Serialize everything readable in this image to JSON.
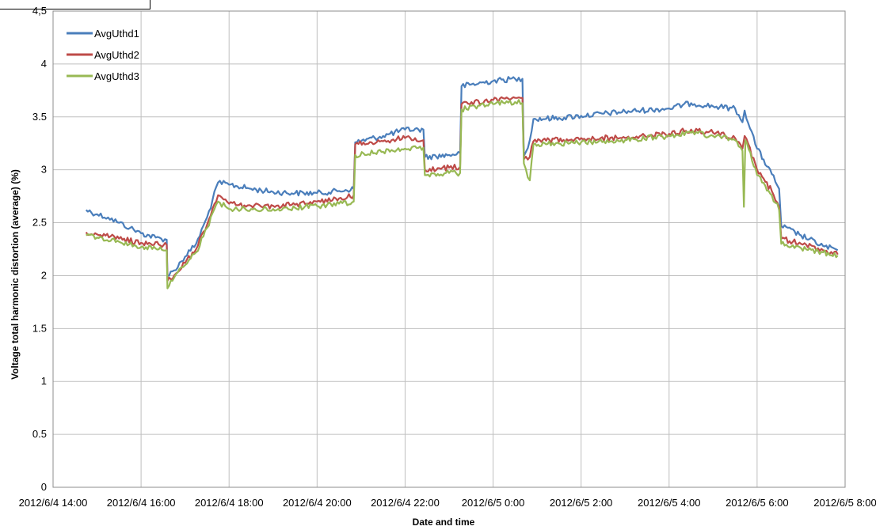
{
  "chart_data": {
    "type": "line",
    "xlabel": "Date and time",
    "ylabel": "Voltage total harmonic distortion (average) (%)",
    "ylim": [
      0,
      4.5
    ],
    "y_ticks": [
      "0",
      "0.5",
      "1",
      "1.5",
      "2",
      "2.5",
      "3",
      "3.5",
      "4",
      "4,5"
    ],
    "x_range": [
      "2012-06-04T14:00",
      "2012-06-05T08:00"
    ],
    "x_ticks": [
      "2012/6/4 14:00",
      "2012/6/4 16:00",
      "2012/6/4 18:00",
      "2012/6/4 20:00",
      "2012/6/4 22:00",
      "2012/6/5 0:00",
      "2012/6/5 2:00",
      "2012/6/5 4:00",
      "2012/6/5 6:00",
      "2012/6/5 8:00"
    ],
    "grid": true,
    "legend_position": "top-left",
    "series": [
      {
        "name": "AvgUthd1",
        "color": "#4a7ebb",
        "points": [
          [
            "2012-06-04T14:45",
            2.62
          ],
          [
            "2012-06-04T15:00",
            2.58
          ],
          [
            "2012-06-04T15:15",
            2.55
          ],
          [
            "2012-06-04T15:30",
            2.5
          ],
          [
            "2012-06-04T15:45",
            2.45
          ],
          [
            "2012-06-04T16:00",
            2.4
          ],
          [
            "2012-06-04T16:20",
            2.36
          ],
          [
            "2012-06-04T16:35",
            2.34
          ],
          [
            "2012-06-04T16:36",
            2.0
          ],
          [
            "2012-06-04T16:45",
            2.05
          ],
          [
            "2012-06-04T17:00",
            2.18
          ],
          [
            "2012-06-04T17:15",
            2.3
          ],
          [
            "2012-06-04T17:30",
            2.55
          ],
          [
            "2012-06-04T17:45",
            2.88
          ],
          [
            "2012-06-04T18:00",
            2.86
          ],
          [
            "2012-06-04T18:30",
            2.82
          ],
          [
            "2012-06-04T19:00",
            2.79
          ],
          [
            "2012-06-04T19:30",
            2.78
          ],
          [
            "2012-06-04T20:00",
            2.78
          ],
          [
            "2012-06-04T20:30",
            2.8
          ],
          [
            "2012-06-04T20:50",
            2.82
          ],
          [
            "2012-06-04T20:52",
            3.26
          ],
          [
            "2012-06-04T21:30",
            3.32
          ],
          [
            "2012-06-04T22:00",
            3.38
          ],
          [
            "2012-06-04T22:25",
            3.38
          ],
          [
            "2012-06-04T22:27",
            3.12
          ],
          [
            "2012-06-04T23:00",
            3.14
          ],
          [
            "2012-06-04T23:15",
            3.16
          ],
          [
            "2012-06-04T23:17",
            3.79
          ],
          [
            "2012-06-05T00:00",
            3.84
          ],
          [
            "2012-06-05T00:30",
            3.86
          ],
          [
            "2012-06-05T00:40",
            3.86
          ],
          [
            "2012-06-05T00:42",
            3.13
          ],
          [
            "2012-06-05T00:50",
            3.28
          ],
          [
            "2012-06-05T00:55",
            3.48
          ],
          [
            "2012-06-05T01:30",
            3.49
          ],
          [
            "2012-06-05T02:00",
            3.51
          ],
          [
            "2012-06-05T03:00",
            3.55
          ],
          [
            "2012-06-05T04:00",
            3.58
          ],
          [
            "2012-06-05T04:30",
            3.63
          ],
          [
            "2012-06-05T05:00",
            3.6
          ],
          [
            "2012-06-05T05:30",
            3.58
          ],
          [
            "2012-06-05T05:40",
            3.45
          ],
          [
            "2012-06-05T05:43",
            3.56
          ],
          [
            "2012-06-05T06:00",
            3.2
          ],
          [
            "2012-06-05T06:20",
            2.96
          ],
          [
            "2012-06-05T06:30",
            2.82
          ],
          [
            "2012-06-05T06:33",
            2.47
          ],
          [
            "2012-06-05T07:00",
            2.38
          ],
          [
            "2012-06-05T07:30",
            2.28
          ],
          [
            "2012-06-05T07:50",
            2.24
          ]
        ]
      },
      {
        "name": "AvgUthd2",
        "color": "#be4b48",
        "points": [
          [
            "2012-06-04T14:45",
            2.41
          ],
          [
            "2012-06-04T15:00",
            2.39
          ],
          [
            "2012-06-04T15:30",
            2.35
          ],
          [
            "2012-06-04T16:00",
            2.31
          ],
          [
            "2012-06-04T16:35",
            2.29
          ],
          [
            "2012-06-04T16:36",
            1.95
          ],
          [
            "2012-06-04T16:45",
            2.0
          ],
          [
            "2012-06-04T17:00",
            2.12
          ],
          [
            "2012-06-04T17:15",
            2.25
          ],
          [
            "2012-06-04T17:30",
            2.48
          ],
          [
            "2012-06-04T17:45",
            2.76
          ],
          [
            "2012-06-04T18:00",
            2.68
          ],
          [
            "2012-06-04T18:30",
            2.66
          ],
          [
            "2012-06-04T19:00",
            2.66
          ],
          [
            "2012-06-04T19:30",
            2.67
          ],
          [
            "2012-06-04T20:00",
            2.7
          ],
          [
            "2012-06-04T20:30",
            2.73
          ],
          [
            "2012-06-04T20:50",
            2.76
          ],
          [
            "2012-06-04T20:52",
            3.24
          ],
          [
            "2012-06-04T21:30",
            3.27
          ],
          [
            "2012-06-04T22:00",
            3.3
          ],
          [
            "2012-06-04T22:25",
            3.28
          ],
          [
            "2012-06-04T22:27",
            3.0
          ],
          [
            "2012-06-04T23:00",
            3.02
          ],
          [
            "2012-06-04T23:15",
            3.03
          ],
          [
            "2012-06-04T23:17",
            3.62
          ],
          [
            "2012-06-05T00:00",
            3.66
          ],
          [
            "2012-06-05T00:30",
            3.68
          ],
          [
            "2012-06-05T00:40",
            3.68
          ],
          [
            "2012-06-05T00:42",
            3.1
          ],
          [
            "2012-06-05T00:50",
            3.12
          ],
          [
            "2012-06-05T00:55",
            3.27
          ],
          [
            "2012-06-05T02:00",
            3.3
          ],
          [
            "2012-06-05T03:00",
            3.3
          ],
          [
            "2012-06-05T04:00",
            3.34
          ],
          [
            "2012-06-05T04:30",
            3.38
          ],
          [
            "2012-06-05T05:00",
            3.35
          ],
          [
            "2012-06-05T05:30",
            3.3
          ],
          [
            "2012-06-05T05:40",
            3.2
          ],
          [
            "2012-06-05T05:43",
            3.32
          ],
          [
            "2012-06-05T06:00",
            3.0
          ],
          [
            "2012-06-05T06:20",
            2.8
          ],
          [
            "2012-06-05T06:30",
            2.65
          ],
          [
            "2012-06-05T06:33",
            2.35
          ],
          [
            "2012-06-05T07:00",
            2.3
          ],
          [
            "2012-06-05T07:30",
            2.24
          ],
          [
            "2012-06-05T07:50",
            2.2
          ]
        ]
      },
      {
        "name": "AvgUthd3",
        "color": "#98b954",
        "points": [
          [
            "2012-06-04T14:45",
            2.38
          ],
          [
            "2012-06-04T15:00",
            2.36
          ],
          [
            "2012-06-04T15:30",
            2.32
          ],
          [
            "2012-06-04T16:00",
            2.27
          ],
          [
            "2012-06-04T16:35",
            2.24
          ],
          [
            "2012-06-04T16:36",
            1.88
          ],
          [
            "2012-06-04T16:45",
            1.98
          ],
          [
            "2012-06-04T17:00",
            2.1
          ],
          [
            "2012-06-04T17:15",
            2.22
          ],
          [
            "2012-06-04T17:30",
            2.45
          ],
          [
            "2012-06-04T17:45",
            2.7
          ],
          [
            "2012-06-04T18:00",
            2.63
          ],
          [
            "2012-06-04T18:30",
            2.63
          ],
          [
            "2012-06-04T19:00",
            2.63
          ],
          [
            "2012-06-04T19:30",
            2.64
          ],
          [
            "2012-06-04T20:00",
            2.66
          ],
          [
            "2012-06-04T20:30",
            2.68
          ],
          [
            "2012-06-04T20:50",
            2.7
          ],
          [
            "2012-06-04T20:52",
            3.14
          ],
          [
            "2012-06-04T21:30",
            3.17
          ],
          [
            "2012-06-04T22:00",
            3.2
          ],
          [
            "2012-06-04T22:25",
            3.21
          ],
          [
            "2012-06-04T22:27",
            2.95
          ],
          [
            "2012-06-04T23:00",
            2.97
          ],
          [
            "2012-06-04T23:15",
            2.97
          ],
          [
            "2012-06-04T23:17",
            3.57
          ],
          [
            "2012-06-05T00:00",
            3.62
          ],
          [
            "2012-06-05T00:30",
            3.64
          ],
          [
            "2012-06-05T00:40",
            3.63
          ],
          [
            "2012-06-05T00:42",
            3.06
          ],
          [
            "2012-06-05T00:50",
            2.9
          ],
          [
            "2012-06-05T00:55",
            3.24
          ],
          [
            "2012-06-05T02:00",
            3.26
          ],
          [
            "2012-06-05T03:00",
            3.28
          ],
          [
            "2012-06-05T04:00",
            3.32
          ],
          [
            "2012-06-05T04:30",
            3.35
          ],
          [
            "2012-06-05T05:00",
            3.32
          ],
          [
            "2012-06-05T05:30",
            3.28
          ],
          [
            "2012-06-05T05:40",
            3.18
          ],
          [
            "2012-06-05T05:42",
            2.65
          ],
          [
            "2012-06-05T05:44",
            3.28
          ],
          [
            "2012-06-05T06:00",
            2.95
          ],
          [
            "2012-06-05T06:20",
            2.76
          ],
          [
            "2012-06-05T06:30",
            2.62
          ],
          [
            "2012-06-05T06:33",
            2.3
          ],
          [
            "2012-06-05T07:00",
            2.26
          ],
          [
            "2012-06-05T07:30",
            2.22
          ],
          [
            "2012-06-05T07:50",
            2.19
          ]
        ]
      }
    ]
  }
}
